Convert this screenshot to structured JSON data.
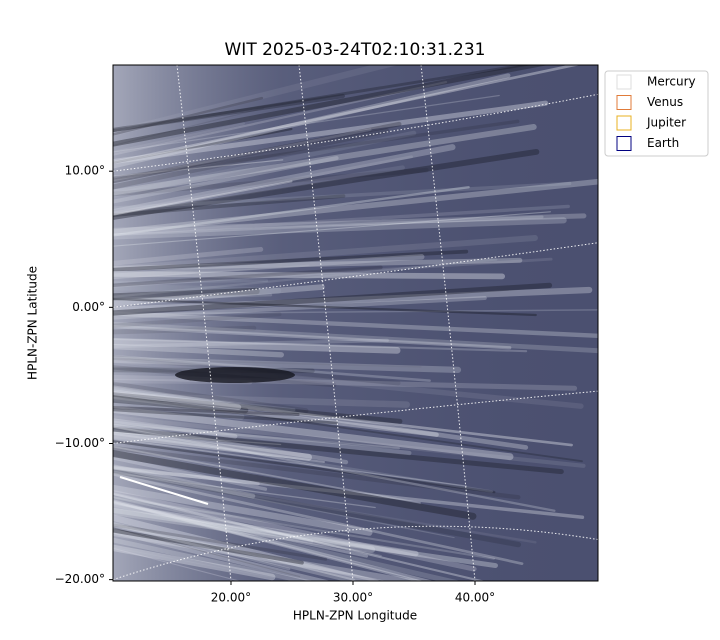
{
  "chart_data": {
    "type": "image",
    "title": "WIT 2025-03-24T02:10:31.231",
    "xlabel": "HPLN-ZPN Longitude",
    "ylabel": "HPLN-ZPN Latitude",
    "xlim": [
      10.33,
      50.08
    ],
    "ylim": [
      -20.1,
      17.8
    ],
    "xticks": [
      {
        "value": 20,
        "label": "20.00°"
      },
      {
        "value": 30,
        "label": "30.00°"
      },
      {
        "value": 40,
        "label": "40.00°"
      }
    ],
    "yticks": [
      {
        "value": -20,
        "label": "−20.00°"
      },
      {
        "value": -10,
        "label": "−10.00°"
      },
      {
        "value": 0,
        "label": "0.00°"
      },
      {
        "value": 10,
        "label": "10.00°"
      }
    ],
    "grid": true,
    "legend": "outside upper right",
    "series": [
      {
        "name": "Mercury",
        "color": "#dddddd"
      },
      {
        "name": "Venus",
        "color": "#e07b39"
      },
      {
        "name": "Jupiter",
        "color": "#e8b020"
      },
      {
        "name": "Earth",
        "color": "#000080"
      }
    ]
  }
}
